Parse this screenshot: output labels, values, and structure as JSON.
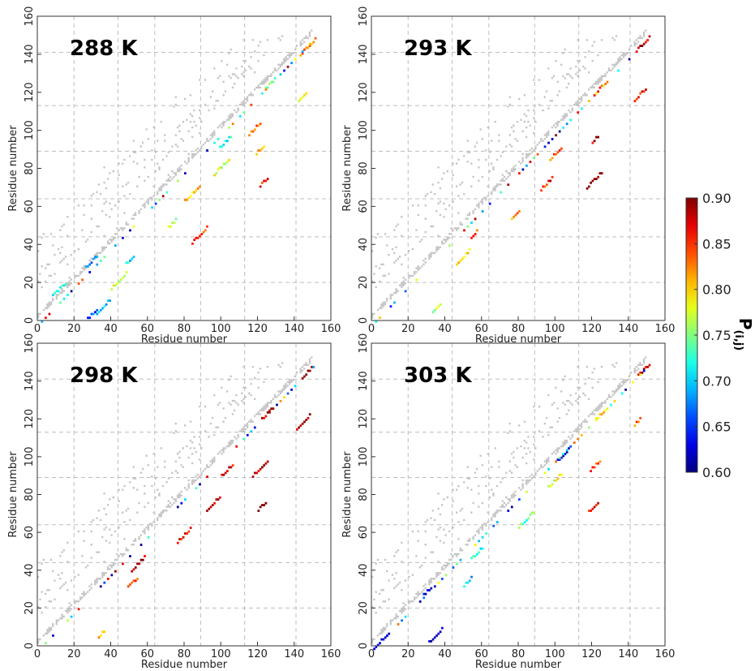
{
  "chart_data": [
    {
      "type": "heatmap",
      "title": "288 K",
      "xlabel": "Residue number",
      "ylabel": "Residue number",
      "xlim": [
        0,
        160
      ],
      "ylim": [
        0,
        160
      ],
      "xticks": [
        "0",
        "20",
        "40",
        "60",
        "80",
        "100",
        "120",
        "140",
        "160"
      ],
      "yticks": [
        "0",
        "20",
        "40",
        "60",
        "80",
        "100",
        "120",
        "140",
        "160"
      ],
      "grid": true,
      "gridlines_at": [
        20,
        44,
        64,
        89,
        113,
        141
      ],
      "gray_contacts": [
        [
          5,
          10
        ],
        [
          15,
          21
        ],
        [
          26,
          31
        ],
        [
          35,
          40
        ],
        [
          47,
          53
        ],
        [
          60,
          66
        ],
        [
          75,
          81
        ],
        [
          89,
          95
        ],
        [
          103,
          108
        ],
        [
          117,
          122
        ],
        [
          131,
          137
        ],
        [
          22,
          35
        ],
        [
          40,
          58
        ],
        [
          55,
          75
        ],
        [
          70,
          90
        ],
        [
          88,
          110
        ],
        [
          100,
          125
        ],
        [
          120,
          140
        ],
        [
          128,
          148
        ]
      ],
      "colored_contacts": [
        {
          "i": 30,
          "j": 3,
          "p": 0.66
        },
        {
          "i": 36,
          "j": 7,
          "p": 0.7
        },
        {
          "i": 12,
          "j": 16,
          "p": 0.72
        },
        {
          "i": 29,
          "j": 30,
          "p": 0.68
        },
        {
          "i": 44,
          "j": 20,
          "p": 0.78
        },
        {
          "i": 50,
          "j": 31,
          "p": 0.71
        },
        {
          "i": 73,
          "j": 50,
          "p": 0.76
        },
        {
          "i": 88,
          "j": 44,
          "p": 0.85
        },
        {
          "i": 84,
          "j": 66,
          "p": 0.8
        },
        {
          "i": 100,
          "j": 80,
          "p": 0.78
        },
        {
          "i": 102,
          "j": 93,
          "p": 0.72
        },
        {
          "i": 121,
          "j": 89,
          "p": 0.8
        },
        {
          "i": 118,
          "j": 100,
          "p": 0.84
        },
        {
          "i": 123,
          "j": 72,
          "p": 0.86
        },
        {
          "i": 127,
          "j": 124,
          "p": 0.74
        },
        {
          "i": 144,
          "j": 117,
          "p": 0.79
        },
        {
          "i": 147,
          "j": 143,
          "p": 0.82
        }
      ]
    },
    {
      "type": "heatmap",
      "title": "293 K",
      "xlabel": "Residue number",
      "ylabel": "Residue number",
      "xlim": [
        0,
        160
      ],
      "ylim": [
        0,
        160
      ],
      "xticks": [
        "0",
        "20",
        "40",
        "60",
        "80",
        "100",
        "120",
        "140",
        "160"
      ],
      "yticks": [
        "0",
        "20",
        "40",
        "60",
        "80",
        "100",
        "120",
        "140",
        "160"
      ],
      "grid": true,
      "gridlines_at": [
        20,
        44,
        64,
        89,
        113,
        141
      ],
      "colored_contacts": [
        {
          "i": 35,
          "j": 6,
          "p": 0.77
        },
        {
          "i": 50,
          "j": 33,
          "p": 0.8
        },
        {
          "i": 56,
          "j": 45,
          "p": 0.85
        },
        {
          "i": 78,
          "j": 55,
          "p": 0.83
        },
        {
          "i": 95,
          "j": 71,
          "p": 0.86
        },
        {
          "i": 100,
          "j": 87,
          "p": 0.84
        },
        {
          "i": 122,
          "j": 95,
          "p": 0.88
        },
        {
          "i": 121,
          "j": 73,
          "p": 0.9
        },
        {
          "i": 125,
          "j": 122,
          "p": 0.85
        },
        {
          "i": 146,
          "j": 118,
          "p": 0.86
        },
        {
          "i": 148,
          "j": 145,
          "p": 0.88
        }
      ]
    },
    {
      "type": "heatmap",
      "title": "298 K",
      "xlabel": "Residue number",
      "ylabel": "Residue number",
      "xlim": [
        0,
        160
      ],
      "ylim": [
        0,
        160
      ],
      "xticks": [
        "0",
        "20",
        "40",
        "60",
        "80",
        "100",
        "120",
        "140",
        "160"
      ],
      "yticks": [
        "0",
        "20",
        "40",
        "60",
        "80",
        "100",
        "120",
        "140",
        "160"
      ],
      "grid": true,
      "gridlines_at": [
        20,
        44,
        64,
        89,
        113,
        141
      ],
      "colored_contacts": [
        {
          "i": 35,
          "j": 6,
          "p": 0.82
        },
        {
          "i": 52,
          "j": 33,
          "p": 0.84
        },
        {
          "i": 55,
          "j": 43,
          "p": 0.88
        },
        {
          "i": 80,
          "j": 58,
          "p": 0.86
        },
        {
          "i": 96,
          "j": 75,
          "p": 0.88
        },
        {
          "i": 103,
          "j": 92,
          "p": 0.87
        },
        {
          "i": 121,
          "j": 93,
          "p": 0.89
        },
        {
          "i": 122,
          "j": 73,
          "p": 0.9
        },
        {
          "i": 125,
          "j": 122,
          "p": 0.88
        },
        {
          "i": 145,
          "j": 118,
          "p": 0.88
        },
        {
          "i": 148,
          "j": 145,
          "p": 0.9
        }
      ]
    },
    {
      "type": "heatmap",
      "title": "303 K",
      "xlabel": "Residue number",
      "ylabel": "Residue number",
      "xlim": [
        0,
        160
      ],
      "ylim": [
        0,
        160
      ],
      "xticks": [
        "0",
        "20",
        "40",
        "60",
        "80",
        "100",
        "120",
        "140",
        "160"
      ],
      "yticks": [
        "0",
        "20",
        "40",
        "60",
        "80",
        "100",
        "120",
        "140",
        "160"
      ],
      "grid": true,
      "gridlines_at": [
        20,
        44,
        64,
        89,
        113,
        141
      ],
      "colored_contacts": [
        {
          "i": 5,
          "j": 2,
          "p": 0.62
        },
        {
          "i": 35,
          "j": 5,
          "p": 0.62
        },
        {
          "i": 30,
          "j": 28,
          "p": 0.64
        },
        {
          "i": 52,
          "j": 33,
          "p": 0.7
        },
        {
          "i": 57,
          "j": 48,
          "p": 0.72
        },
        {
          "i": 84,
          "j": 66,
          "p": 0.74
        },
        {
          "i": 100,
          "j": 87,
          "p": 0.78
        },
        {
          "i": 104,
          "j": 100,
          "p": 0.62
        },
        {
          "i": 122,
          "j": 95,
          "p": 0.84
        },
        {
          "i": 121,
          "j": 73,
          "p": 0.86
        },
        {
          "i": 125,
          "j": 122,
          "p": 0.8
        },
        {
          "i": 145,
          "j": 118,
          "p": 0.84
        },
        {
          "i": 148,
          "j": 145,
          "p": 0.88
        }
      ]
    }
  ],
  "colorbar": {
    "label_main": "P",
    "label_sub": "(i,j)",
    "min": 0.6,
    "max": 0.9,
    "ticks": [
      "0.90",
      "0.85",
      "0.80",
      "0.75",
      "0.70",
      "0.65",
      "0.60"
    ],
    "colormap": "jet"
  },
  "colors": {
    "contact_gray": "#c4c4c4",
    "grid": "#bdbdbd",
    "frame": "#333333"
  }
}
